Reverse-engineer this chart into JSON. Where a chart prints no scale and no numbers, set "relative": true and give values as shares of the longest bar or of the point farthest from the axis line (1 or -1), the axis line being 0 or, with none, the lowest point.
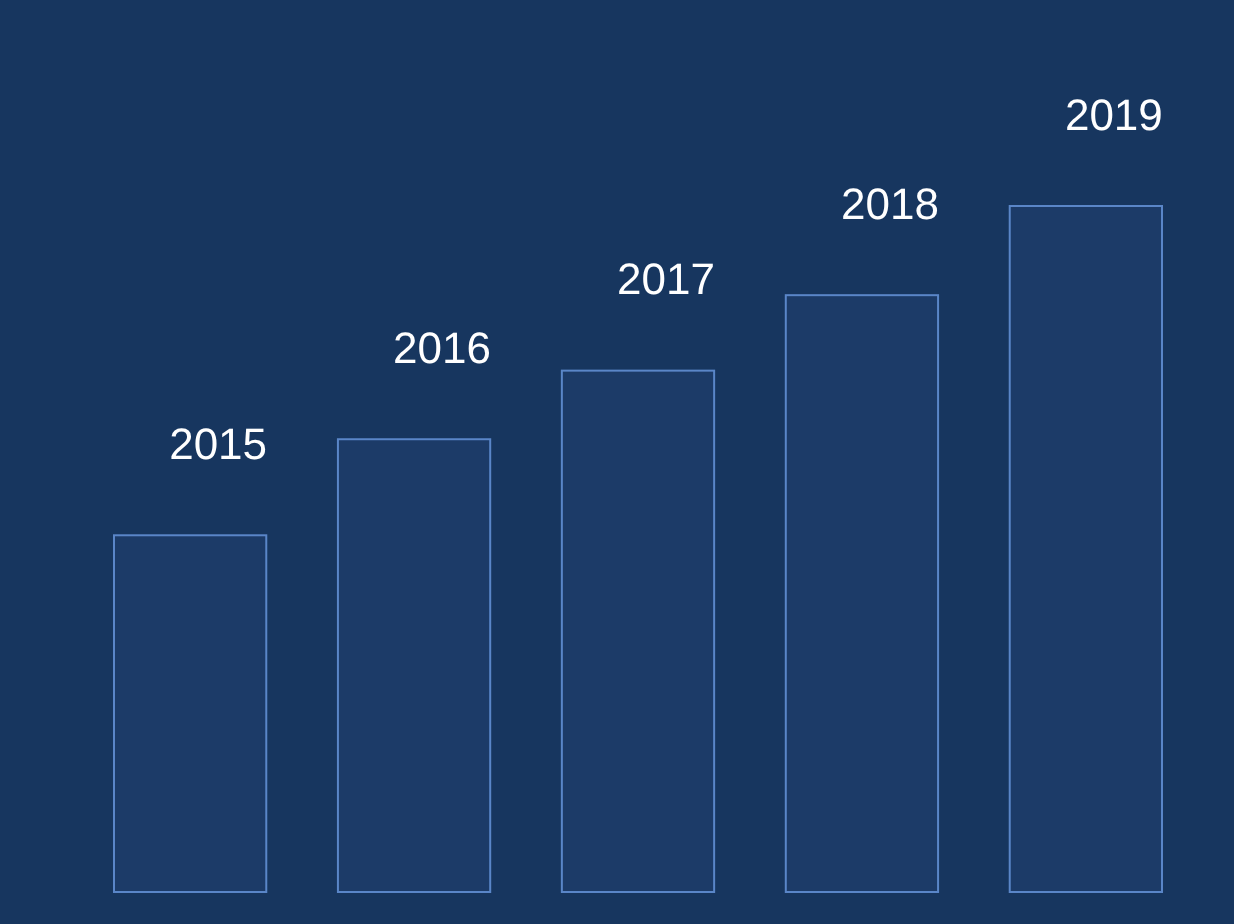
{
  "chart_data": {
    "type": "bar",
    "relative": true,
    "categories": [
      "2015",
      "2016",
      "2017",
      "2018",
      "2019"
    ],
    "values": [
      0.52,
      0.66,
      0.76,
      0.87,
      1
    ],
    "color": "#1c3b68"
  }
}
